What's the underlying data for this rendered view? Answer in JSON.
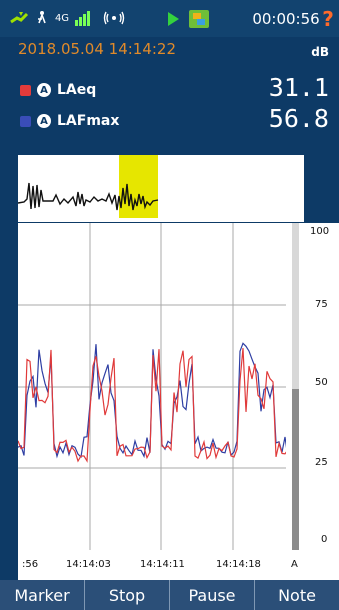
{
  "status": {
    "network": "4G",
    "time": "00:00:56",
    "help": "?"
  },
  "header": {
    "datetime": "2018.05.04 14:14:22",
    "unit": "dB"
  },
  "metrics": [
    {
      "label": "LAeq",
      "value": "31.1",
      "color": "#e33b3b"
    },
    {
      "label": "LAFmax",
      "value": "56.8",
      "color": "#3a4db8"
    }
  ],
  "scale": {
    "labels": [
      "100",
      "75",
      "50",
      "25",
      "0"
    ]
  },
  "timeline": {
    "labels": [
      ":56",
      "14:14:03",
      "14:14:11",
      "14:14:18",
      "A"
    ]
  },
  "buttons": [
    {
      "label": "Marker"
    },
    {
      "label": "Stop"
    },
    {
      "label": "Pause"
    },
    {
      "label": "Note"
    }
  ]
}
